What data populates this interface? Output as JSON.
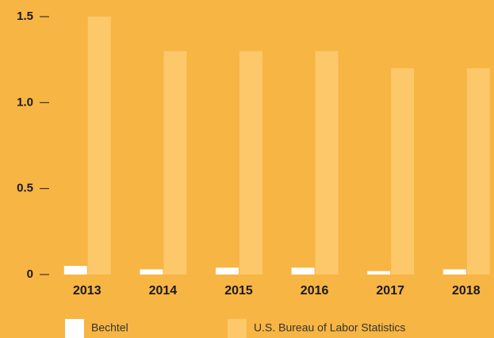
{
  "chart_data": {
    "type": "bar",
    "categories": [
      "2013",
      "2014",
      "2015",
      "2016",
      "2017",
      "2018"
    ],
    "series": [
      {
        "name": "Bechtel",
        "color": "#ffffff",
        "values": [
          0.05,
          0.03,
          0.04,
          0.04,
          0.02,
          0.03
        ]
      },
      {
        "name": "U.S. Bureau of Labor Statistics",
        "color": "#fcc86a",
        "values": [
          1.5,
          1.3,
          1.3,
          1.3,
          1.2,
          1.2
        ]
      }
    ],
    "ylim": [
      0,
      1.5
    ],
    "yticks": [
      0,
      0.5,
      {
        "value": 1,
        "label": "1.0"
      },
      1.5
    ],
    "legend": "bottom"
  }
}
